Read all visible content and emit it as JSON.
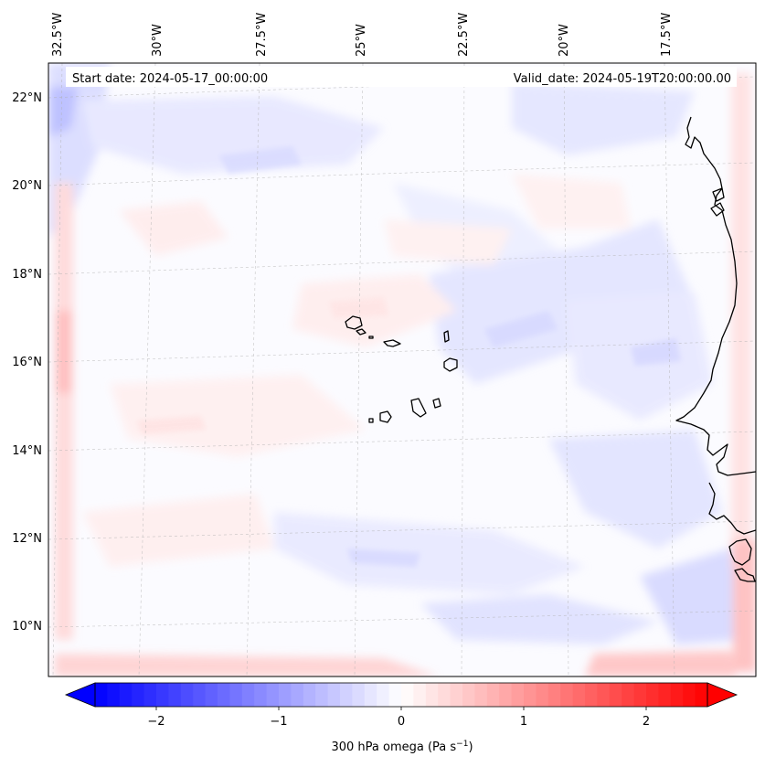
{
  "header": {
    "start_date": "Start date: 2024-05-17_00:00:00",
    "valid_date": "Valid_date: 2024-05-19T20:00:00.00"
  },
  "map": {
    "longitude_labels": [
      "32.5°W",
      "30°W",
      "27.5°W",
      "25°W",
      "22.5°W",
      "20°W",
      "17.5°W"
    ],
    "latitude_labels": [
      "22°N",
      "20°N",
      "18°N",
      "16°N",
      "14°N",
      "12°N",
      "10°N"
    ],
    "gridlines": true
  },
  "colorbar": {
    "label_main": "300 hPa omega (Pa s",
    "label_exp": "−1",
    "label_close": ")",
    "tick_labels": [
      "−2",
      "−1",
      "0",
      "1",
      "2"
    ],
    "range": [
      -2.5,
      2.5
    ],
    "colormap": "bwr",
    "extend": "both",
    "colors": {
      "min": "#0000ff",
      "mid": "#ffffff",
      "max": "#ff0000"
    }
  }
}
